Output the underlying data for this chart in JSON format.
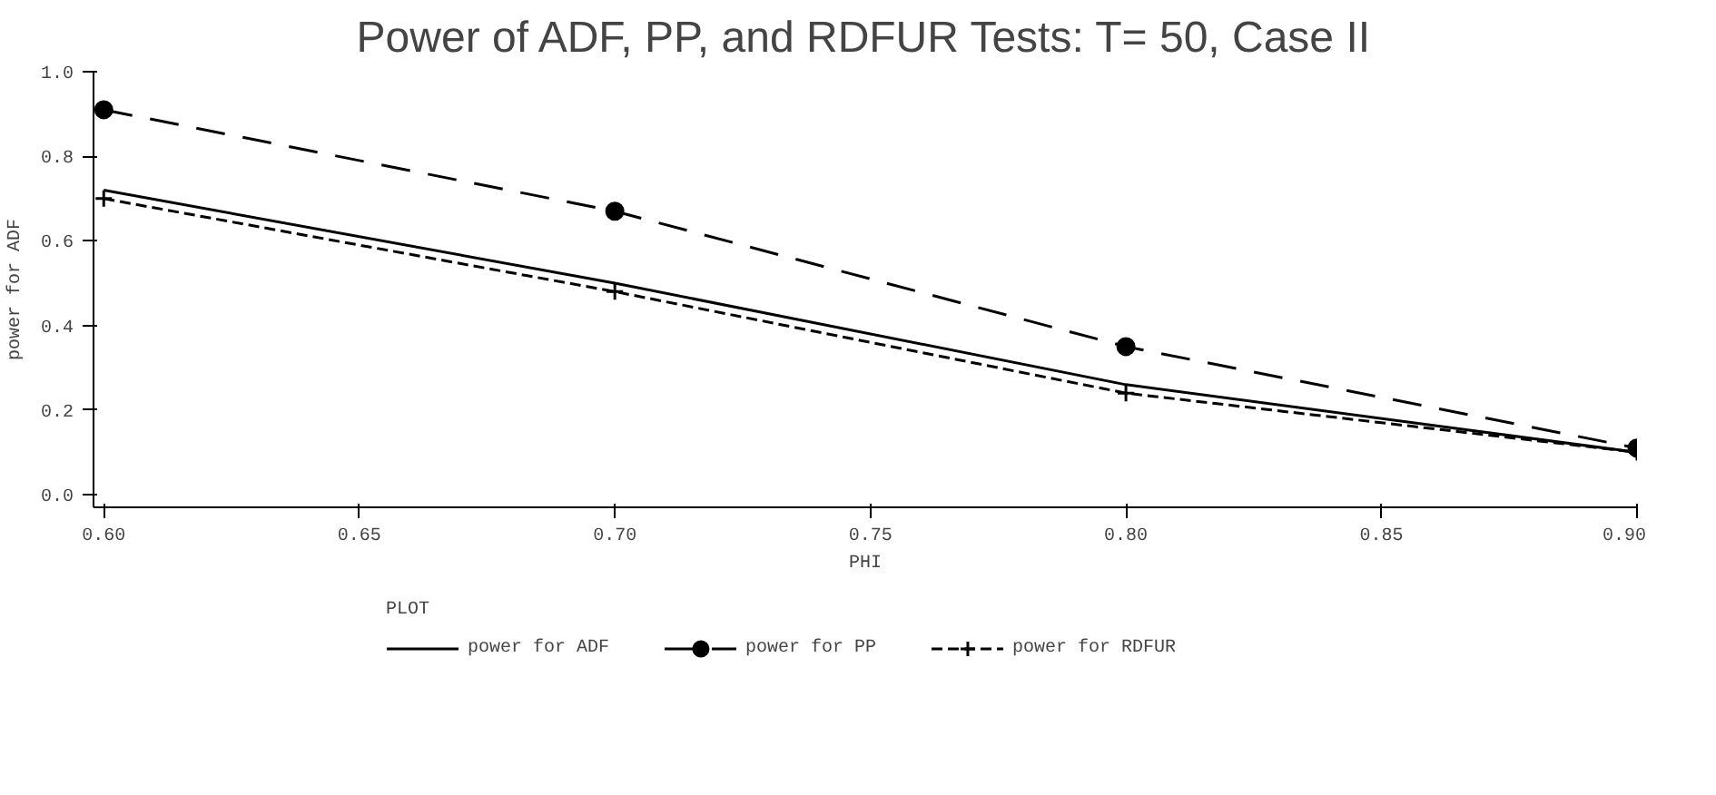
{
  "chart_data": {
    "type": "line",
    "title": "Power of ADF, PP, and RDFUR Tests: T= 50, Case II",
    "xlabel": "PHI",
    "ylabel": "power for ADF",
    "legend_title": "PLOT",
    "x": [
      0.6,
      0.7,
      0.8,
      0.9
    ],
    "series": [
      {
        "name": "power for ADF",
        "color": "#000000",
        "values": [
          0.72,
          0.5,
          0.26,
          0.1
        ],
        "marker": "none",
        "line_style": "solid"
      },
      {
        "name": "power for PP",
        "color": "#000000",
        "values": [
          0.91,
          0.67,
          0.35,
          0.11
        ],
        "marker": "circle",
        "line_style": "dashed"
      },
      {
        "name": "power for RDFUR",
        "color": "#000000",
        "values": [
          0.7,
          0.48,
          0.24,
          0.1
        ],
        "marker": "cross",
        "line_style": "dotted"
      }
    ],
    "xlim": [
      0.598,
      0.9
    ],
    "ylim": [
      -0.03,
      1.0
    ],
    "xticks": [
      {
        "value": 0.6,
        "label": "0.60"
      },
      {
        "value": 0.65,
        "label": "0.65"
      },
      {
        "value": 0.7,
        "label": "0.70"
      },
      {
        "value": 0.75,
        "label": "0.75"
      },
      {
        "value": 0.8,
        "label": "0.80"
      },
      {
        "value": 0.85,
        "label": "0.85"
      },
      {
        "value": 0.9,
        "label": "0.90"
      }
    ],
    "yticks": [
      {
        "value": 0.0,
        "label": "0.0"
      },
      {
        "value": 0.2,
        "label": "0.2"
      },
      {
        "value": 0.4,
        "label": "0.4"
      },
      {
        "value": 0.6,
        "label": "0.6"
      },
      {
        "value": 0.8,
        "label": "0.8"
      },
      {
        "value": 1.0,
        "label": "1.0"
      }
    ],
    "grid": false,
    "legend": "bottom"
  }
}
